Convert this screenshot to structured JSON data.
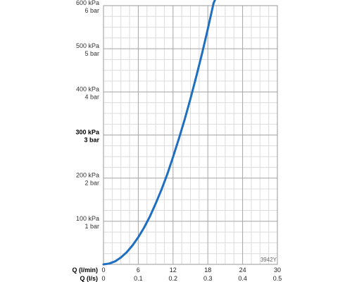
{
  "chart_data": {
    "type": "line",
    "title": "",
    "y_axis": {
      "range": [
        0,
        600
      ],
      "unit": "kPa",
      "minor_step": 25,
      "tick_labels": [
        {
          "value": 600,
          "kpa": "600 kPa",
          "bar": "6 bar",
          "bold": false
        },
        {
          "value": 500,
          "kpa": "500 kPa",
          "bar": "5 bar",
          "bold": false
        },
        {
          "value": 400,
          "kpa": "400 kPa",
          "bar": "4 bar",
          "bold": false
        },
        {
          "value": 300,
          "kpa": "300 kPa",
          "bar": "3 bar",
          "bold": true
        },
        {
          "value": 200,
          "kpa": "200 kPa",
          "bar": "2 bar",
          "bold": false
        },
        {
          "value": 100,
          "kpa": "100 kPa",
          "bar": "1 bar",
          "bold": false
        }
      ]
    },
    "x_axis": {
      "range": [
        0,
        30
      ],
      "minor_step": 1.5,
      "major_step": 6,
      "label_lmin": "Q (l/min)",
      "label_ls": "Q (l/s)",
      "ticks_lmin": [
        "0",
        "6",
        "12",
        "18",
        "24",
        "30"
      ],
      "ticks_ls": [
        "0",
        "0.1",
        "0.2",
        "0.3",
        "0.4",
        "0.5"
      ]
    },
    "grid": true,
    "series": [
      {
        "color": "#1f6fc1",
        "x": [
          0,
          1,
          2,
          3,
          4,
          5,
          6,
          7,
          8,
          9,
          10,
          11,
          12,
          13,
          14,
          15,
          16,
          17,
          18,
          18.5,
          19,
          19.5,
          19.7
        ],
        "y": [
          0,
          2,
          7,
          16,
          28,
          44,
          63,
          85,
          111,
          141,
          173,
          209,
          249,
          291,
          336,
          384,
          435,
          489,
          546,
          576,
          606,
          636,
          648
        ]
      }
    ],
    "annotation": "3942Y"
  }
}
